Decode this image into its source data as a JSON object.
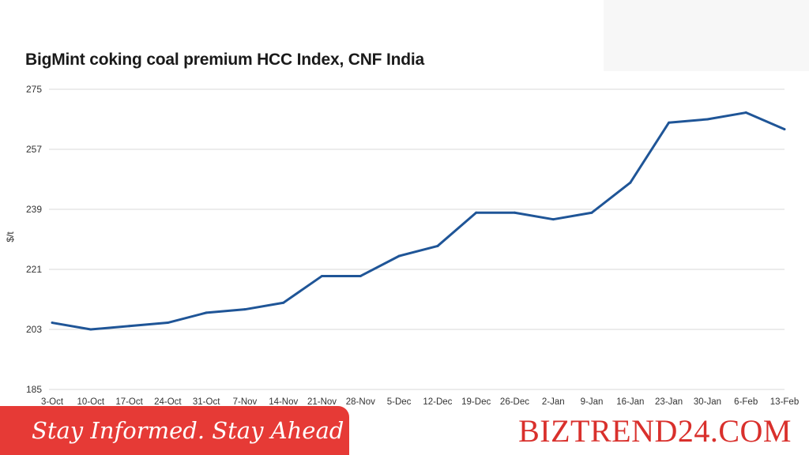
{
  "chart_data": {
    "type": "line",
    "title": "BigMint coking coal premium HCC Index, CNF India",
    "ylabel": "$/t",
    "xlabel": "",
    "ylim": [
      185,
      275
    ],
    "yticks": [
      "185",
      "203",
      "221",
      "239",
      "257",
      "275"
    ],
    "grid": true,
    "line_color": "#1f5597",
    "categories": [
      "3-Oct",
      "10-Oct",
      "17-Oct",
      "24-Oct",
      "31-Oct",
      "7-Nov",
      "14-Nov",
      "21-Nov",
      "28-Nov",
      "5-Dec",
      "12-Dec",
      "19-Dec",
      "26-Dec",
      "2-Jan",
      "9-Jan",
      "16-Jan",
      "23-Jan",
      "30-Jan",
      "6-Feb",
      "13-Feb"
    ],
    "series": [
      {
        "values": [
          205,
          203,
          204,
          205,
          208,
          209,
          211,
          219,
          219,
          225,
          228,
          238,
          238,
          236,
          238,
          247,
          265,
          266,
          268,
          263
        ]
      }
    ]
  },
  "banner": {
    "tagline": "Stay Informed. Stay Ahead",
    "brand": "BIZTREND24.COM"
  },
  "colors": {
    "tagline_bg": "#e63a36",
    "brand_text": "#d9302c"
  }
}
